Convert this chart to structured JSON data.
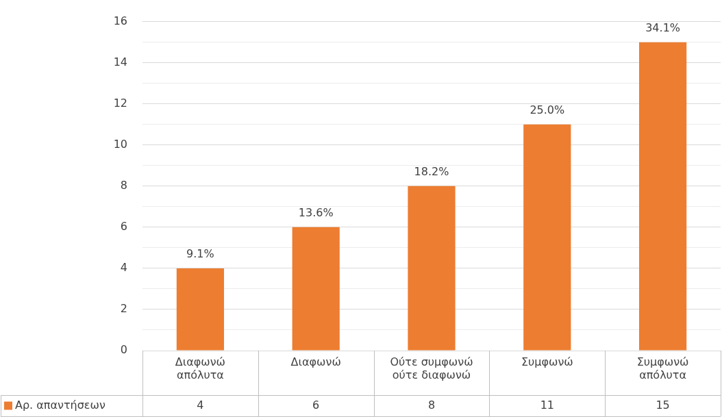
{
  "chart_data": {
    "type": "bar",
    "categories": [
      "Διαφωνώ απόλυτα",
      "Διαφωνώ",
      "Ούτε συμφωνώ ούτε διαφωνώ",
      "Συμφωνώ",
      "Συμφωνώ απόλυτα"
    ],
    "series": [
      {
        "name": "Αρ. απαντήσεων",
        "color": "#ed7d31",
        "values": [
          4,
          6,
          8,
          11,
          15
        ]
      }
    ],
    "annotations": [
      {
        "text": "9.1%",
        "x": "Διαφωνώ απόλυτα",
        "y": 4
      },
      {
        "text": "13.6%",
        "x": "Διαφωνώ",
        "y": 6
      },
      {
        "text": "18.2%",
        "x": "Ούτε συμφωνώ ούτε διαφωνώ",
        "y": 8
      },
      {
        "text": "25.0%",
        "x": "Συμφωνώ",
        "y": 11
      },
      {
        "text": "34.1%",
        "x": "Συμφωνώ απόλυτα",
        "y": 15
      }
    ],
    "ylim": [
      0,
      16
    ],
    "yticks": [
      0,
      {
        "value": 1,
        "label": null
      },
      2,
      {
        "value": 3,
        "label": null
      },
      4,
      {
        "value": 5,
        "label": null
      },
      6,
      {
        "value": 7,
        "label": null
      },
      8,
      {
        "value": 9,
        "label": null
      },
      10,
      {
        "value": 11,
        "label": null
      },
      12,
      {
        "value": 13,
        "label": null
      },
      14,
      {
        "value": 15,
        "label": null
      },
      16
    ],
    "grid": "y",
    "data_labels": true,
    "legend": "bottom"
  }
}
